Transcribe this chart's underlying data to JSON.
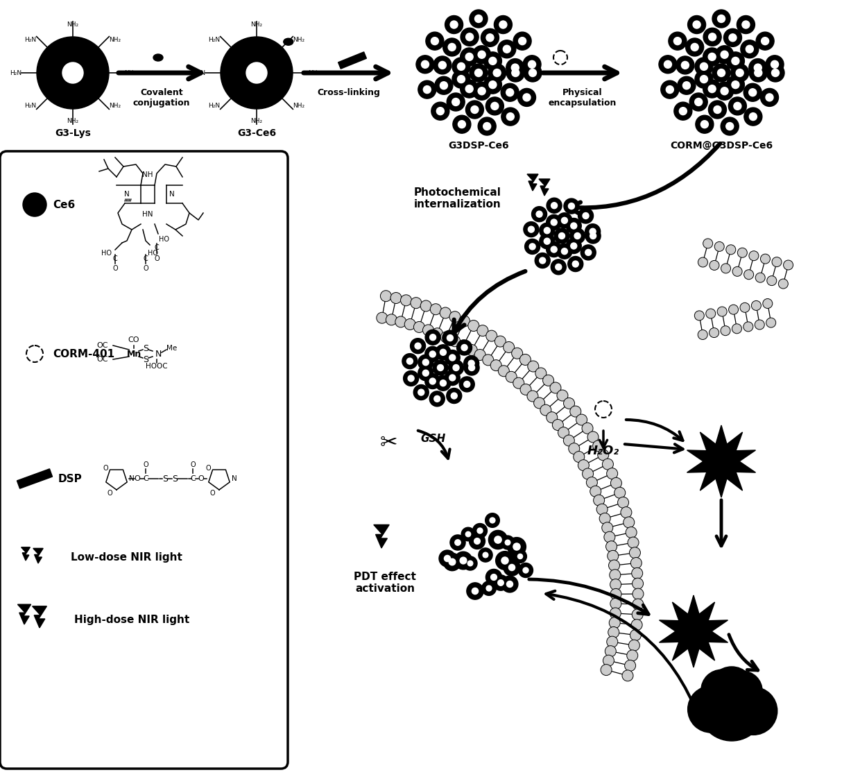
{
  "bg_color": "#ffffff",
  "black": "#000000",
  "white": "#ffffff",
  "top_labels": [
    "G3-Lys",
    "G3-Ce6",
    "G3DSP-Ce6",
    "CORM@G3DSP-Ce6"
  ],
  "arrow_labels": [
    "Covalent\nconjugation",
    "Cross-linking",
    "Physical\nencapsulation"
  ],
  "legend_labels": [
    "Ce6",
    "CORM-401",
    "DSP",
    "Low-dose NIR light",
    "High-dose NIR light"
  ],
  "photochem_label": "Photochemical\ninternalization",
  "pdt_label": "PDT effect\nactivation",
  "gsh_label": "GSH",
  "h2o2_label": "H₂O₂"
}
